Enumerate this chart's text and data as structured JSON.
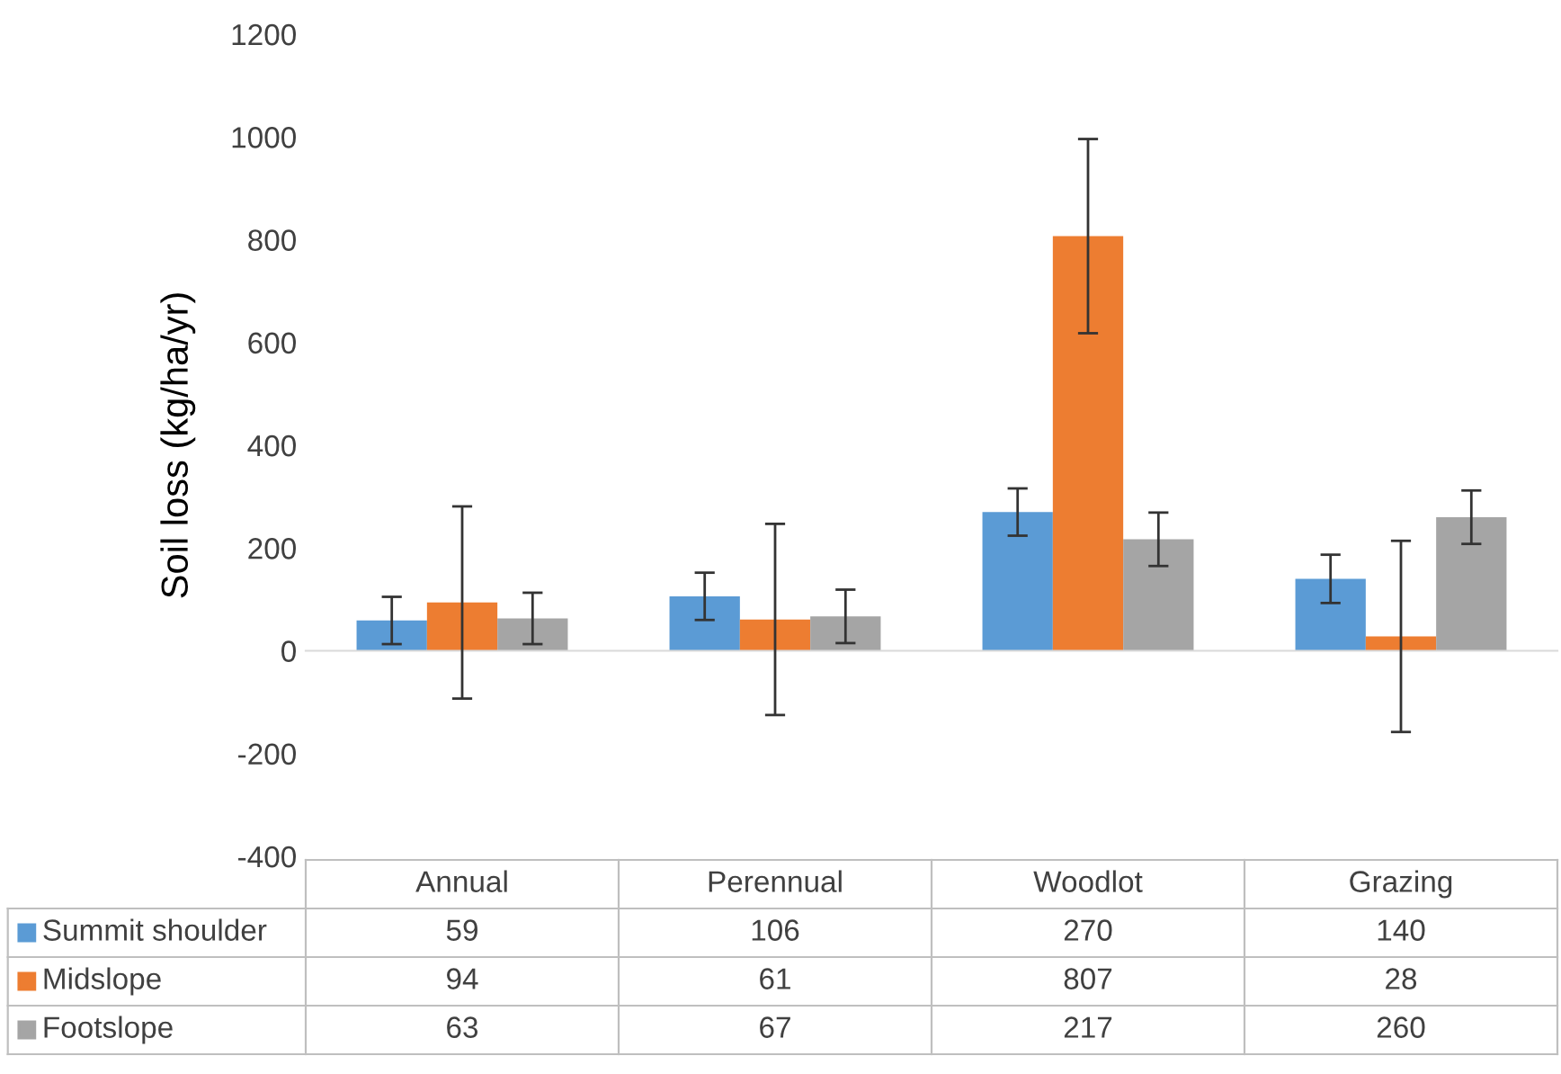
{
  "chart_data": {
    "type": "bar",
    "ylabel": "Soil loss (kg/ha/yr)",
    "categories": [
      "Annual",
      "Perennual",
      "Woodlot",
      "Grazing"
    ],
    "series": [
      {
        "name": "Summit shoulder",
        "color": "#5b9bd5",
        "values": [
          59,
          106,
          270,
          140
        ],
        "errors": [
          46,
          46,
          46,
          47
        ]
      },
      {
        "name": "Midslope",
        "color": "#ed7d31",
        "values": [
          94,
          61,
          807,
          28
        ],
        "errors": [
          187,
          186,
          189,
          186
        ]
      },
      {
        "name": "Footslope",
        "color": "#a5a5a5",
        "values": [
          63,
          67,
          217,
          260
        ],
        "errors": [
          50,
          52,
          52,
          52
        ]
      }
    ],
    "ylim": [
      -400,
      1200
    ],
    "yticks": [
      -400,
      -200,
      0,
      200,
      400,
      600,
      800,
      1000,
      1200
    ],
    "legend": "bottom",
    "data_labels": true
  }
}
